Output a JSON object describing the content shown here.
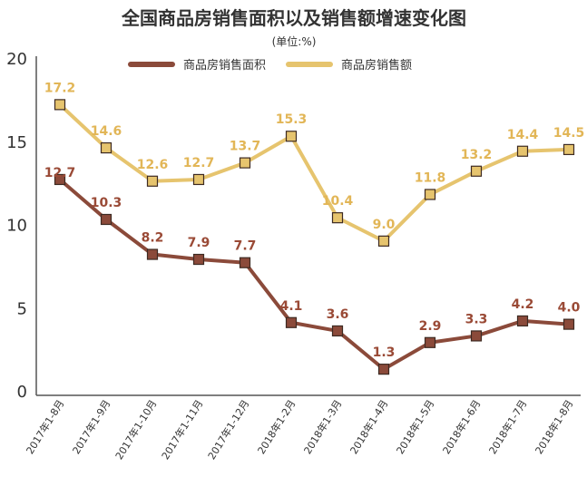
{
  "chart_data": {
    "type": "line",
    "title": "全国商品房销售面积以及销售额增速变化图",
    "subtitle": "(单位:%)",
    "categories": [
      "2017年1-8月",
      "2017年1-9月",
      "2017年1-10月",
      "2017年1-11月",
      "2017年1-12月",
      "2018年1-2月",
      "2018年1-3月",
      "2018年1-4月",
      "2018年1-5月",
      "2018年1-6月",
      "2018年1-7月",
      "2018年1-8月"
    ],
    "series": [
      {
        "name": "商品房销售面积",
        "color": "#8b4a3a",
        "label_color": "#9a4a36",
        "values": [
          12.7,
          10.3,
          8.2,
          7.9,
          7.7,
          4.1,
          3.6,
          1.3,
          2.9,
          3.3,
          4.2,
          4.0
        ],
        "labels": [
          "12.7",
          "10.3",
          "8.2",
          "7.9",
          "7.7",
          "4.1",
          "3.6",
          "1.3",
          "2.9",
          "3.3",
          "4.2",
          "4.0"
        ]
      },
      {
        "name": "商品房销售额",
        "color": "#e6c46e",
        "label_color": "#e2b657",
        "values": [
          17.2,
          14.6,
          12.6,
          12.7,
          13.7,
          15.3,
          10.4,
          9.0,
          11.8,
          13.2,
          14.4,
          14.5
        ],
        "labels": [
          "17.2",
          "14.6",
          "12.6",
          "12.7",
          "13.7",
          "15.3",
          "10.4",
          "9.0",
          "11.8",
          "13.2",
          "14.4",
          "14.5"
        ]
      }
    ],
    "yticks": [
      "0",
      "5",
      "10",
      "15",
      "20"
    ],
    "ylim": [
      0,
      20
    ],
    "grid": false,
    "legend_position": "top-center"
  }
}
